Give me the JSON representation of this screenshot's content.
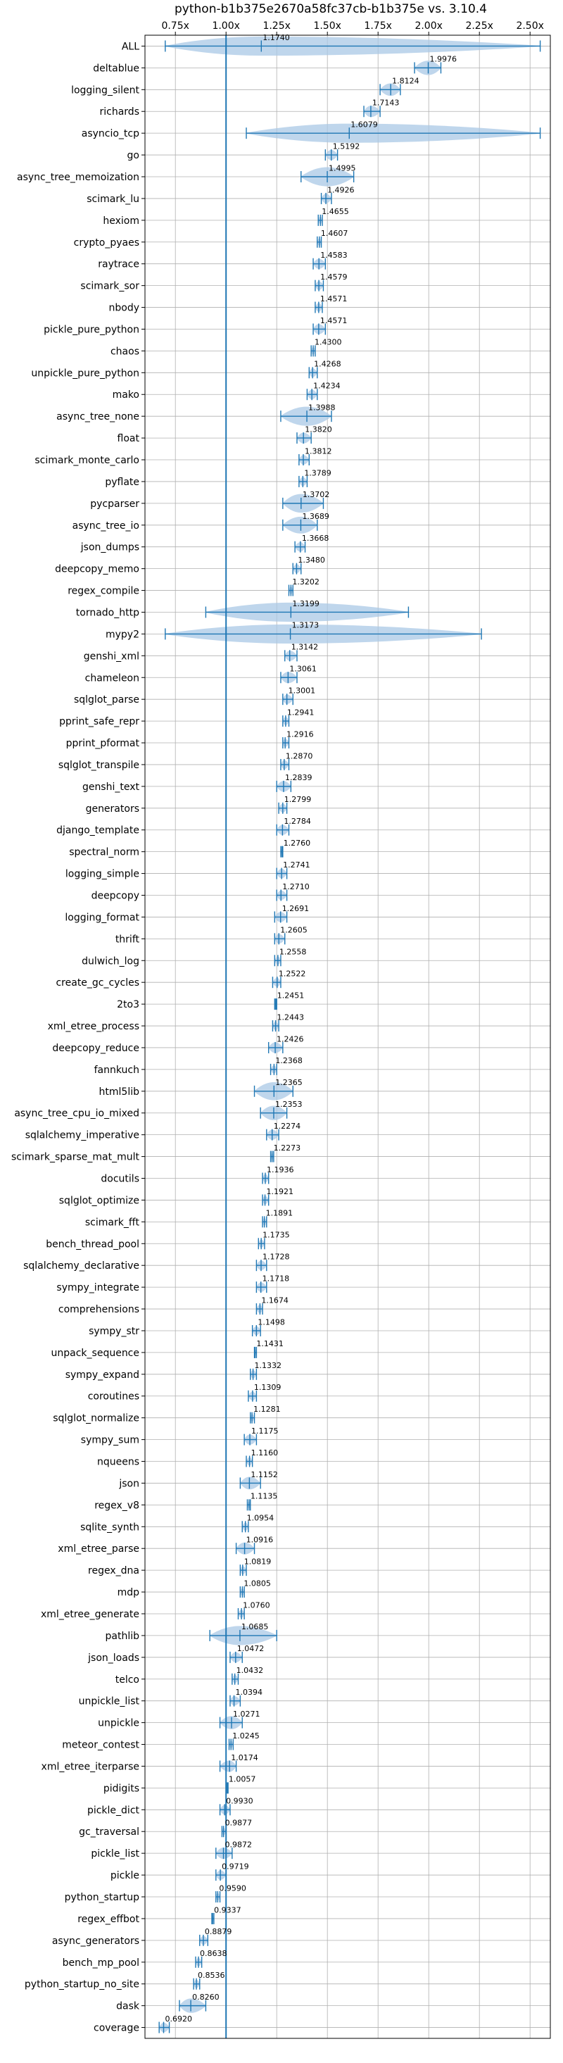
{
  "chart_data": {
    "type": "violin",
    "title": "python-b1b375e2670a58fc37cb-b1b375e vs. 3.10.4",
    "orientation": "horizontal",
    "x_tick_position": "top",
    "xlim": [
      0.6,
      2.6
    ],
    "x_ticks": [
      0.75,
      1.0,
      1.25,
      1.5,
      1.75,
      2.0,
      2.25,
      2.5
    ],
    "x_tick_labels": [
      "0.75x",
      "1.00x",
      "1.25x",
      "1.50x",
      "1.75x",
      "2.00x",
      "2.25x",
      "2.50x"
    ],
    "reference_line": 1.0,
    "grid": true,
    "color": "#1f77b4",
    "fill_color": "#a9c8e6",
    "benchmarks": [
      {
        "name": "ALL",
        "value": 1.174,
        "label": "1.1740",
        "min": 0.7,
        "max": 2.55
      },
      {
        "name": "deltablue",
        "value": 1.9976,
        "label": "1.9976",
        "min": 1.93,
        "max": 2.06
      },
      {
        "name": "logging_silent",
        "value": 1.8124,
        "label": "1.8124",
        "min": 1.76,
        "max": 1.86
      },
      {
        "name": "richards",
        "value": 1.7143,
        "label": "1.7143",
        "min": 1.68,
        "max": 1.76
      },
      {
        "name": "asyncio_tcp",
        "value": 1.6079,
        "label": "1.6079",
        "min": 1.1,
        "max": 2.55
      },
      {
        "name": "go",
        "value": 1.5192,
        "label": "1.5192",
        "min": 1.49,
        "max": 1.55
      },
      {
        "name": "async_tree_memoization",
        "value": 1.4995,
        "label": "1.4995",
        "min": 1.37,
        "max": 1.63
      },
      {
        "name": "scimark_lu",
        "value": 1.4926,
        "label": "1.4926",
        "min": 1.47,
        "max": 1.52
      },
      {
        "name": "hexiom",
        "value": 1.4655,
        "label": "1.4655",
        "min": 1.455,
        "max": 1.475
      },
      {
        "name": "crypto_pyaes",
        "value": 1.4607,
        "label": "1.4607",
        "min": 1.45,
        "max": 1.47
      },
      {
        "name": "raytrace",
        "value": 1.4583,
        "label": "1.4583",
        "min": 1.43,
        "max": 1.49
      },
      {
        "name": "scimark_sor",
        "value": 1.4579,
        "label": "1.4579",
        "min": 1.44,
        "max": 1.48
      },
      {
        "name": "nbody",
        "value": 1.4571,
        "label": "1.4571",
        "min": 1.44,
        "max": 1.475
      },
      {
        "name": "pickle_pure_python",
        "value": 1.4571,
        "label": "1.4571",
        "min": 1.43,
        "max": 1.49
      },
      {
        "name": "chaos",
        "value": 1.43,
        "label": "1.4300",
        "min": 1.42,
        "max": 1.44
      },
      {
        "name": "unpickle_pure_python",
        "value": 1.4268,
        "label": "1.4268",
        "min": 1.41,
        "max": 1.45
      },
      {
        "name": "mako",
        "value": 1.4234,
        "label": "1.4234",
        "min": 1.4,
        "max": 1.45
      },
      {
        "name": "async_tree_none",
        "value": 1.3988,
        "label": "1.3988",
        "min": 1.27,
        "max": 1.52
      },
      {
        "name": "float",
        "value": 1.382,
        "label": "1.3820",
        "min": 1.35,
        "max": 1.42
      },
      {
        "name": "scimark_monte_carlo",
        "value": 1.3812,
        "label": "1.3812",
        "min": 1.36,
        "max": 1.41
      },
      {
        "name": "pyflate",
        "value": 1.3789,
        "label": "1.3789",
        "min": 1.36,
        "max": 1.4
      },
      {
        "name": "pycparser",
        "value": 1.3702,
        "label": "1.3702",
        "min": 1.28,
        "max": 1.48
      },
      {
        "name": "async_tree_io",
        "value": 1.3689,
        "label": "1.3689",
        "min": 1.28,
        "max": 1.45
      },
      {
        "name": "json_dumps",
        "value": 1.3668,
        "label": "1.3668",
        "min": 1.34,
        "max": 1.39
      },
      {
        "name": "deepcopy_memo",
        "value": 1.348,
        "label": "1.3480",
        "min": 1.33,
        "max": 1.37
      },
      {
        "name": "regex_compile",
        "value": 1.3202,
        "label": "1.3202",
        "min": 1.31,
        "max": 1.33
      },
      {
        "name": "tornado_http",
        "value": 1.3199,
        "label": "1.3199",
        "min": 0.9,
        "max": 1.9
      },
      {
        "name": "mypy2",
        "value": 1.3173,
        "label": "1.3173",
        "min": 0.7,
        "max": 2.26
      },
      {
        "name": "genshi_xml",
        "value": 1.3142,
        "label": "1.3142",
        "min": 1.29,
        "max": 1.35
      },
      {
        "name": "chameleon",
        "value": 1.3061,
        "label": "1.3061",
        "min": 1.27,
        "max": 1.35
      },
      {
        "name": "sqlglot_parse",
        "value": 1.3001,
        "label": "1.3001",
        "min": 1.28,
        "max": 1.33
      },
      {
        "name": "pprint_safe_repr",
        "value": 1.2941,
        "label": "1.2941",
        "min": 1.28,
        "max": 1.31
      },
      {
        "name": "pprint_pformat",
        "value": 1.2916,
        "label": "1.2916",
        "min": 1.28,
        "max": 1.31
      },
      {
        "name": "sqlglot_transpile",
        "value": 1.287,
        "label": "1.2870",
        "min": 1.27,
        "max": 1.31
      },
      {
        "name": "genshi_text",
        "value": 1.2839,
        "label": "1.2839",
        "min": 1.25,
        "max": 1.32
      },
      {
        "name": "generators",
        "value": 1.2799,
        "label": "1.2799",
        "min": 1.26,
        "max": 1.3
      },
      {
        "name": "django_template",
        "value": 1.2784,
        "label": "1.2784",
        "min": 1.25,
        "max": 1.31
      },
      {
        "name": "spectral_norm",
        "value": 1.276,
        "label": "1.2760",
        "min": 1.27,
        "max": 1.28
      },
      {
        "name": "logging_simple",
        "value": 1.2741,
        "label": "1.2741",
        "min": 1.25,
        "max": 1.3
      },
      {
        "name": "deepcopy",
        "value": 1.271,
        "label": "1.2710",
        "min": 1.25,
        "max": 1.3
      },
      {
        "name": "logging_format",
        "value": 1.2691,
        "label": "1.2691",
        "min": 1.24,
        "max": 1.3
      },
      {
        "name": "thrift",
        "value": 1.2605,
        "label": "1.2605",
        "min": 1.24,
        "max": 1.29
      },
      {
        "name": "dulwich_log",
        "value": 1.2558,
        "label": "1.2558",
        "min": 1.24,
        "max": 1.27
      },
      {
        "name": "create_gc_cycles",
        "value": 1.2522,
        "label": "1.2522",
        "min": 1.23,
        "max": 1.27
      },
      {
        "name": "2to3",
        "value": 1.2451,
        "label": "1.2451",
        "min": 1.24,
        "max": 1.25
      },
      {
        "name": "xml_etree_process",
        "value": 1.2443,
        "label": "1.2443",
        "min": 1.23,
        "max": 1.26
      },
      {
        "name": "deepcopy_reduce",
        "value": 1.2426,
        "label": "1.2426",
        "min": 1.21,
        "max": 1.28
      },
      {
        "name": "fannkuch",
        "value": 1.2368,
        "label": "1.2368",
        "min": 1.22,
        "max": 1.25
      },
      {
        "name": "html5lib",
        "value": 1.2365,
        "label": "1.2365",
        "min": 1.14,
        "max": 1.33
      },
      {
        "name": "async_tree_cpu_io_mixed",
        "value": 1.2353,
        "label": "1.2353",
        "min": 1.17,
        "max": 1.3
      },
      {
        "name": "sqlalchemy_imperative",
        "value": 1.2274,
        "label": "1.2274",
        "min": 1.2,
        "max": 1.26
      },
      {
        "name": "scimark_sparse_mat_mult",
        "value": 1.2273,
        "label": "1.2273",
        "min": 1.22,
        "max": 1.235
      },
      {
        "name": "docutils",
        "value": 1.1936,
        "label": "1.1936",
        "min": 1.18,
        "max": 1.21
      },
      {
        "name": "sqlglot_optimize",
        "value": 1.1921,
        "label": "1.1921",
        "min": 1.18,
        "max": 1.21
      },
      {
        "name": "scimark_fft",
        "value": 1.1891,
        "label": "1.1891",
        "min": 1.18,
        "max": 1.2
      },
      {
        "name": "bench_thread_pool",
        "value": 1.1735,
        "label": "1.1735",
        "min": 1.16,
        "max": 1.19
      },
      {
        "name": "sqlalchemy_declarative",
        "value": 1.1728,
        "label": "1.1728",
        "min": 1.15,
        "max": 1.2
      },
      {
        "name": "sympy_integrate",
        "value": 1.1718,
        "label": "1.1718",
        "min": 1.15,
        "max": 1.2
      },
      {
        "name": "comprehensions",
        "value": 1.1674,
        "label": "1.1674",
        "min": 1.15,
        "max": 1.18
      },
      {
        "name": "sympy_str",
        "value": 1.1498,
        "label": "1.1498",
        "min": 1.13,
        "max": 1.17
      },
      {
        "name": "unpack_sequence",
        "value": 1.1431,
        "label": "1.1431",
        "min": 1.14,
        "max": 1.15
      },
      {
        "name": "sympy_expand",
        "value": 1.1332,
        "label": "1.1332",
        "min": 1.12,
        "max": 1.15
      },
      {
        "name": "coroutines",
        "value": 1.1309,
        "label": "1.1309",
        "min": 1.11,
        "max": 1.15
      },
      {
        "name": "sqlglot_normalize",
        "value": 1.1281,
        "label": "1.1281",
        "min": 1.12,
        "max": 1.14
      },
      {
        "name": "sympy_sum",
        "value": 1.1175,
        "label": "1.1175",
        "min": 1.09,
        "max": 1.15
      },
      {
        "name": "nqueens",
        "value": 1.116,
        "label": "1.1160",
        "min": 1.1,
        "max": 1.13
      },
      {
        "name": "json",
        "value": 1.1152,
        "label": "1.1152",
        "min": 1.07,
        "max": 1.17
      },
      {
        "name": "regex_v8",
        "value": 1.1135,
        "label": "1.1135",
        "min": 1.105,
        "max": 1.12
      },
      {
        "name": "sqlite_synth",
        "value": 1.0954,
        "label": "1.0954",
        "min": 1.08,
        "max": 1.11
      },
      {
        "name": "xml_etree_parse",
        "value": 1.0916,
        "label": "1.0916",
        "min": 1.05,
        "max": 1.14
      },
      {
        "name": "regex_dna",
        "value": 1.0819,
        "label": "1.0819",
        "min": 1.07,
        "max": 1.1
      },
      {
        "name": "mdp",
        "value": 1.0805,
        "label": "1.0805",
        "min": 1.07,
        "max": 1.09
      },
      {
        "name": "xml_etree_generate",
        "value": 1.076,
        "label": "1.0760",
        "min": 1.06,
        "max": 1.09
      },
      {
        "name": "pathlib",
        "value": 1.0685,
        "label": "1.0685",
        "min": 0.92,
        "max": 1.25
      },
      {
        "name": "json_loads",
        "value": 1.0472,
        "label": "1.0472",
        "min": 1.02,
        "max": 1.08
      },
      {
        "name": "telco",
        "value": 1.0432,
        "label": "1.0432",
        "min": 1.03,
        "max": 1.06
      },
      {
        "name": "unpickle_list",
        "value": 1.0394,
        "label": "1.0394",
        "min": 1.02,
        "max": 1.07
      },
      {
        "name": "unpickle",
        "value": 1.0271,
        "label": "1.0271",
        "min": 0.97,
        "max": 1.08
      },
      {
        "name": "meteor_contest",
        "value": 1.0245,
        "label": "1.0245",
        "min": 1.015,
        "max": 1.035
      },
      {
        "name": "xml_etree_iterparse",
        "value": 1.0174,
        "label": "1.0174",
        "min": 0.97,
        "max": 1.05
      },
      {
        "name": "pidigits",
        "value": 1.0057,
        "label": "1.0057",
        "min": 1.0,
        "max": 1.01
      },
      {
        "name": "pickle_dict",
        "value": 0.993,
        "label": "0.9930",
        "min": 0.97,
        "max": 1.02
      },
      {
        "name": "gc_traversal",
        "value": 0.9877,
        "label": "0.9877",
        "min": 0.98,
        "max": 1.0
      },
      {
        "name": "pickle_list",
        "value": 0.9872,
        "label": "0.9872",
        "min": 0.95,
        "max": 1.03
      },
      {
        "name": "pickle",
        "value": 0.9719,
        "label": "0.9719",
        "min": 0.95,
        "max": 1.0
      },
      {
        "name": "python_startup",
        "value": 0.959,
        "label": "0.9590",
        "min": 0.95,
        "max": 0.97
      },
      {
        "name": "regex_effbot",
        "value": 0.9337,
        "label": "0.9337",
        "min": 0.93,
        "max": 0.94
      },
      {
        "name": "async_generators",
        "value": 0.8879,
        "label": "0.8879",
        "min": 0.87,
        "max": 0.91
      },
      {
        "name": "bench_mp_pool",
        "value": 0.8638,
        "label": "0.8638",
        "min": 0.85,
        "max": 0.88
      },
      {
        "name": "python_startup_no_site",
        "value": 0.8536,
        "label": "0.8536",
        "min": 0.84,
        "max": 0.87
      },
      {
        "name": "dask",
        "value": 0.826,
        "label": "0.8260",
        "min": 0.77,
        "max": 0.9
      },
      {
        "name": "coverage",
        "value": 0.692,
        "label": "0.6920",
        "min": 0.67,
        "max": 0.72
      }
    ]
  }
}
